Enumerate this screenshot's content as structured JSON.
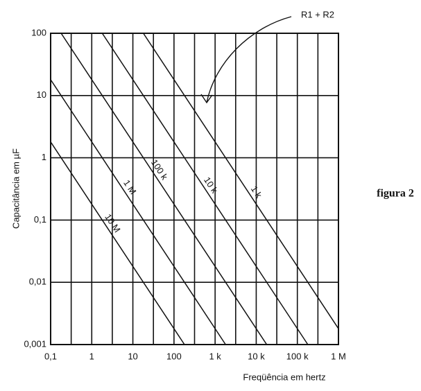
{
  "chart_data": {
    "type": "line",
    "y_label": "Capacitância em µF",
    "x_label": "Freqüência em hertz",
    "caption": "figura 2",
    "annotation": "R1 + R2",
    "xscale": "log",
    "yscale": "log",
    "grid": true,
    "xlim": [
      0.1,
      1000000
    ],
    "ylim": [
      0.001,
      100
    ],
    "xticks": [
      {
        "value": 0.1,
        "label": "0,1"
      },
      1,
      10,
      100,
      {
        "value": 1000,
        "label": "1 k"
      },
      {
        "value": 10000,
        "label": "10 k"
      },
      {
        "value": 100000,
        "label": "100 k"
      },
      {
        "value": 1000000,
        "label": "1 M"
      }
    ],
    "yticks": [
      {
        "value": 0.001,
        "label": "0,001"
      },
      {
        "value": 0.01,
        "label": "0,01"
      },
      {
        "value": 0.1,
        "label": "0,1"
      },
      1,
      10,
      100
    ],
    "series": [
      {
        "name": "10 M",
        "color": "#111111",
        "x": [
          0.1,
          180
        ],
        "values": [
          1.8,
          0.001
        ]
      },
      {
        "name": "1 M",
        "color": "#111111",
        "x": [
          0.1,
          1800
        ],
        "values": [
          18,
          0.001
        ]
      },
      {
        "name": "100 k",
        "color": "#111111",
        "x": [
          0.18,
          18000
        ],
        "values": [
          100,
          0.001
        ]
      },
      {
        "name": "10 k",
        "color": "#111111",
        "x": [
          1.8,
          180000
        ],
        "values": [
          100,
          0.001
        ]
      },
      {
        "name": "1 k",
        "color": "#111111",
        "x": [
          18,
          1000000
        ],
        "values": [
          100,
          0.0018
        ]
      }
    ]
  }
}
